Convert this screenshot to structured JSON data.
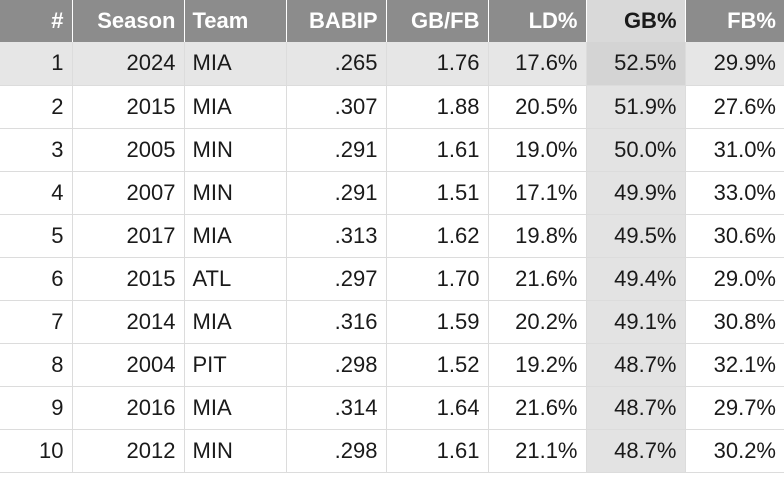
{
  "table": {
    "columns": [
      "#",
      "Season",
      "Team",
      "BABIP",
      "GB/FB",
      "LD%",
      "GB%",
      "FB%"
    ],
    "sorted_column": "GB%",
    "highlight_row": 1,
    "rows": [
      [
        "1",
        "2024",
        "MIA",
        ".265",
        "1.76",
        "17.6%",
        "52.5%",
        "29.9%"
      ],
      [
        "2",
        "2015",
        "MIA",
        ".307",
        "1.88",
        "20.5%",
        "51.9%",
        "27.6%"
      ],
      [
        "3",
        "2005",
        "MIN",
        ".291",
        "1.61",
        "19.0%",
        "50.0%",
        "31.0%"
      ],
      [
        "4",
        "2007",
        "MIN",
        ".291",
        "1.51",
        "17.1%",
        "49.9%",
        "33.0%"
      ],
      [
        "5",
        "2017",
        "MIA",
        ".313",
        "1.62",
        "19.8%",
        "49.5%",
        "30.6%"
      ],
      [
        "6",
        "2015",
        "ATL",
        ".297",
        "1.70",
        "21.6%",
        "49.4%",
        "29.0%"
      ],
      [
        "7",
        "2014",
        "MIA",
        ".316",
        "1.59",
        "20.2%",
        "49.1%",
        "30.8%"
      ],
      [
        "8",
        "2004",
        "PIT",
        ".298",
        "1.52",
        "19.2%",
        "48.7%",
        "32.1%"
      ],
      [
        "9",
        "2016",
        "MIA",
        ".314",
        "1.64",
        "21.6%",
        "48.7%",
        "29.7%"
      ],
      [
        "10",
        "2012",
        "MIN",
        ".298",
        "1.61",
        "21.1%",
        "48.7%",
        "30.2%"
      ]
    ],
    "colors": {
      "header_bg": "#8c8c8c",
      "header_text": "#ffffff",
      "sorted_header_bg": "#d9d9d9",
      "sorted_col_bg": "#e3e3e3",
      "highlight_row_bg": "#e6e6e6"
    }
  }
}
